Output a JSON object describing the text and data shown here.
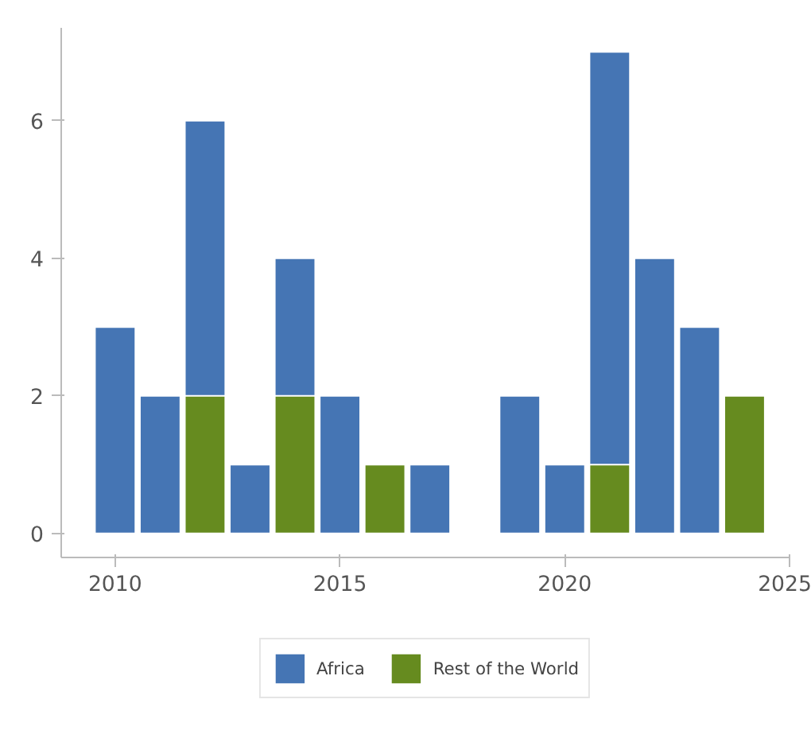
{
  "chart_data": {
    "type": "bar",
    "series": [
      {
        "name": "Africa",
        "color": "#4575b4",
        "x": [
          2010,
          2011,
          2012,
          2013,
          2014,
          2015,
          2017,
          2019,
          2020,
          2021,
          2022,
          2023
        ],
        "values": [
          3,
          2,
          6,
          1,
          4,
          2,
          1,
          2,
          1,
          7,
          4,
          3
        ]
      },
      {
        "name": "Rest of the World",
        "color": "#668b1f",
        "x": [
          2012,
          2014,
          2016,
          2021,
          2024
        ],
        "values": [
          2,
          2,
          1,
          1,
          2
        ]
      }
    ],
    "xlim": [
      2008.8,
      2025
    ],
    "xticks": [
      2010,
      2015,
      2020,
      2025
    ],
    "ylim": [
      -0.35,
      7.35
    ],
    "yticks": [
      0,
      2,
      4,
      6
    ],
    "grid": false,
    "legend": "bottom"
  }
}
